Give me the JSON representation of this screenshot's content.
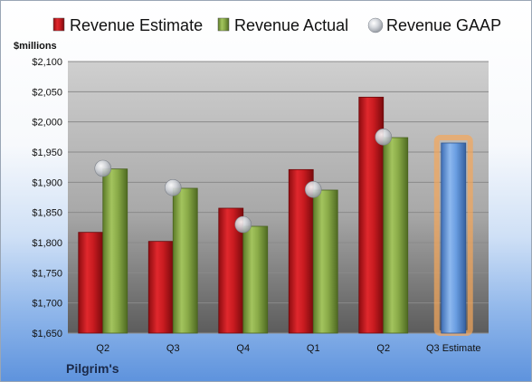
{
  "chart_data": {
    "type": "bar",
    "ylabel": "$millions",
    "company": "Pilgrim's",
    "categories": [
      "Q2",
      "Q3",
      "Q4",
      "Q1",
      "Q2",
      "Q3 Estimate"
    ],
    "ylim": [
      1650,
      2100
    ],
    "yticks": [
      1650,
      1700,
      1750,
      1800,
      1850,
      1900,
      1950,
      2000,
      2050,
      2100
    ],
    "ytick_labels": [
      "$1,650",
      "$1,700",
      "$1,750",
      "$1,800",
      "$1,850",
      "$1,900",
      "$1,950",
      "$2,000",
      "$2,050",
      "$2,100"
    ],
    "series": [
      {
        "name": "Revenue Estimate",
        "values": [
          1817,
          1802,
          1857,
          1921,
          2041,
          null
        ],
        "color": "#c0171c"
      },
      {
        "name": "Revenue Actual",
        "values": [
          1922,
          1890,
          1827,
          1887,
          1974,
          null
        ],
        "color": "#86a844"
      },
      {
        "name": "Revenue GAAP",
        "values": [
          1923,
          1891,
          1830,
          1888,
          1975,
          null
        ],
        "color": "#b8bcc4",
        "marker": "circle"
      },
      {
        "name": "Q3 Estimate",
        "values": [
          null,
          null,
          null,
          null,
          null,
          1965
        ],
        "color": "#5b8fd6",
        "highlight": "#f5a75a"
      }
    ],
    "grid": true,
    "legend_position": "top"
  }
}
